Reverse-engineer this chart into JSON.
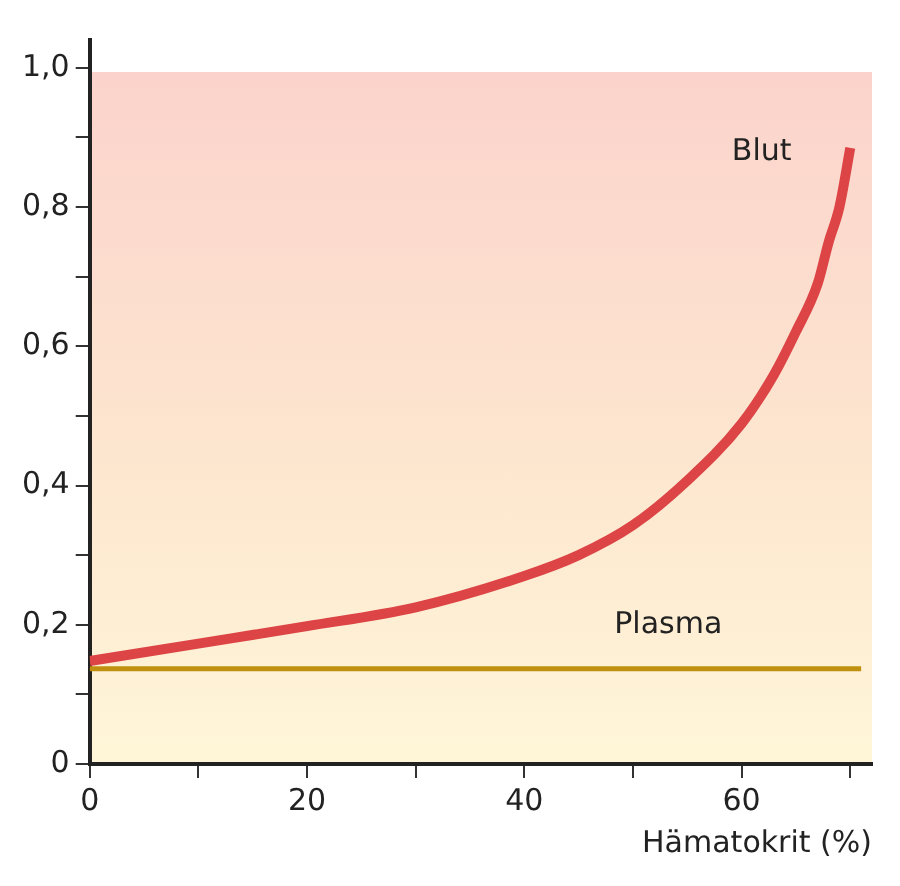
{
  "chart_data": {
    "type": "line",
    "xlabel": "Hämatokrit (%)",
    "xlim": [
      0,
      72
    ],
    "xticks": [
      0,
      {
        "value": 10,
        "label": null
      },
      20,
      {
        "value": 30,
        "label": null
      },
      40,
      {
        "value": 50,
        "label": null
      },
      60,
      {
        "value": 70,
        "label": null
      }
    ],
    "ylim": [
      0,
      1.04
    ],
    "yticks": [
      0,
      {
        "value": 0.1,
        "label": null
      },
      {
        "value": 0.2,
        "label": "0,2"
      },
      {
        "value": 0.3,
        "label": null
      },
      {
        "value": 0.4,
        "label": "0,4"
      },
      {
        "value": 0.5,
        "label": null
      },
      {
        "value": 0.6,
        "label": "0,6"
      },
      {
        "value": 0.7,
        "label": null
      },
      {
        "value": 0.8,
        "label": "0,8"
      },
      {
        "value": 0.9,
        "label": null
      },
      {
        "value": 1.0,
        "label": "1,0"
      }
    ],
    "series": [
      {
        "name": "Blut",
        "color": "#dc4446",
        "x": [
          0,
          10,
          20,
          30,
          40,
          45,
          50,
          55,
          60,
          63,
          65,
          67,
          68,
          69,
          70
        ],
        "values": [
          0.148,
          0.173,
          0.198,
          0.225,
          0.27,
          0.3,
          0.343,
          0.407,
          0.489,
          0.56,
          0.621,
          0.69,
          0.749,
          0.8,
          0.885
        ]
      },
      {
        "name": "Plasma",
        "color": "#c09010",
        "x": [
          0,
          71
        ],
        "values": [
          0.137,
          0.137
        ]
      }
    ],
    "grid": false,
    "legend": false,
    "marker": "none",
    "line_style": "solid"
  }
}
